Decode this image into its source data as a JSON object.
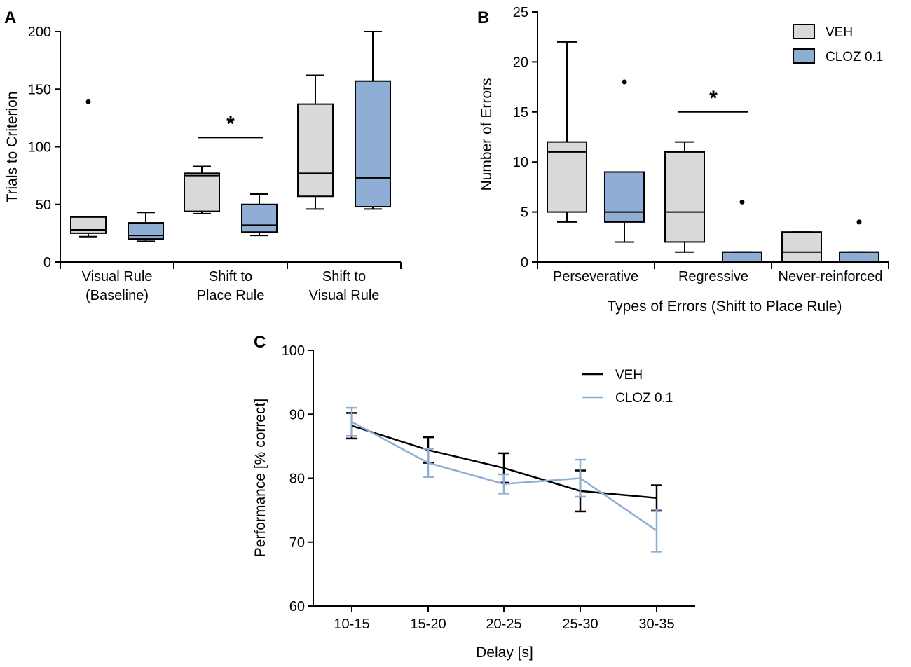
{
  "colors": {
    "veh": "#d9d9d9",
    "cloz": "#8eaed6",
    "cloz_line": "#8eaed6",
    "veh_line": "#000000"
  },
  "chart_data": [
    {
      "panel": "A",
      "type": "box",
      "ylabel": "Trials to Criterion",
      "ylim": [
        0,
        200
      ],
      "yticks": [
        "0",
        "50",
        "100",
        "150",
        "200"
      ],
      "categories": [
        {
          "label_lines": [
            "Visual  Rule",
            "(Baseline)"
          ]
        },
        {
          "label_lines": [
            "Shift to",
            "Place Rule"
          ]
        },
        {
          "label_lines": [
            "Shift to",
            "Visual  Rule"
          ]
        }
      ],
      "series": [
        {
          "name": "VEH",
          "boxes": [
            {
              "min": 22,
              "q1": 25,
              "median": 28,
              "q3": 39,
              "max": 39,
              "outliers": [
                139
              ]
            },
            {
              "min": 42,
              "q1": 44,
              "median": 75,
              "q3": 77,
              "max": 83,
              "outliers": []
            },
            {
              "min": 46,
              "q1": 57,
              "median": 77,
              "q3": 137,
              "max": 162,
              "outliers": []
            }
          ]
        },
        {
          "name": "CLOZ 0.1",
          "boxes": [
            {
              "min": 18,
              "q1": 20,
              "median": 23,
              "q3": 34,
              "max": 43,
              "outliers": []
            },
            {
              "min": 23,
              "q1": 26,
              "median": 32,
              "q3": 50,
              "max": 59,
              "outliers": []
            },
            {
              "min": 46,
              "q1": 48,
              "median": 73,
              "q3": 157,
              "max": 200,
              "outliers": []
            }
          ]
        }
      ],
      "significance": [
        {
          "category": 1,
          "y": 108,
          "label": "*"
        }
      ]
    },
    {
      "panel": "B",
      "type": "box",
      "xlabel": "Types of Errors (Shift to Place Rule)",
      "ylabel": "Number of Errors",
      "ylim": [
        0,
        25
      ],
      "yticks": [
        "0",
        "5",
        "10",
        "15",
        "20",
        "25"
      ],
      "categories": [
        {
          "label_lines": [
            "Perseverative"
          ]
        },
        {
          "label_lines": [
            "Regressive"
          ]
        },
        {
          "label_lines": [
            "Never-reinforced"
          ]
        }
      ],
      "legend": [
        "VEH",
        "CLOZ 0.1"
      ],
      "series": [
        {
          "name": "VEH",
          "boxes": [
            {
              "min": 4,
              "q1": 5,
              "median": 11,
              "q3": 12,
              "max": 22,
              "outliers": []
            },
            {
              "min": 1,
              "q1": 2,
              "median": 5,
              "q3": 11,
              "max": 12,
              "outliers": []
            },
            {
              "min": 0,
              "q1": 0,
              "median": 1,
              "q3": 3,
              "max": 3,
              "outliers": []
            }
          ]
        },
        {
          "name": "CLOZ 0.1",
          "boxes": [
            {
              "min": 2,
              "q1": 4,
              "median": 5,
              "q3": 9,
              "max": 9,
              "outliers": [
                18
              ]
            },
            {
              "min": 0,
              "q1": 0,
              "median": 1,
              "q3": 1,
              "max": 1,
              "outliers": [
                6
              ]
            },
            {
              "min": 0,
              "q1": 0,
              "median": 1,
              "q3": 1,
              "max": 1,
              "outliers": [
                4
              ]
            }
          ]
        }
      ],
      "significance": [
        {
          "category": 1,
          "y": 15,
          "label": "*"
        }
      ]
    },
    {
      "panel": "C",
      "type": "line",
      "xlabel": "Delay [s]",
      "ylabel": "Performance [% correct]",
      "ylim": [
        60,
        100
      ],
      "yticks": [
        "60",
        "70",
        "80",
        "90",
        "100"
      ],
      "categories": [
        "10-15",
        "15-20",
        "20-25",
        "25-30",
        "30-35"
      ],
      "legend": [
        "VEH",
        "CLOZ 0.1"
      ],
      "series": [
        {
          "name": "VEH",
          "values": [
            88.2,
            84.4,
            81.6,
            78.0,
            76.9
          ],
          "errors": [
            2.0,
            2.0,
            2.3,
            3.2,
            2.0
          ]
        },
        {
          "name": "CLOZ 0.1",
          "values": [
            88.8,
            82.4,
            79.1,
            80.0,
            71.8
          ],
          "errors": [
            2.2,
            2.2,
            1.5,
            2.9,
            3.3
          ]
        }
      ]
    }
  ]
}
